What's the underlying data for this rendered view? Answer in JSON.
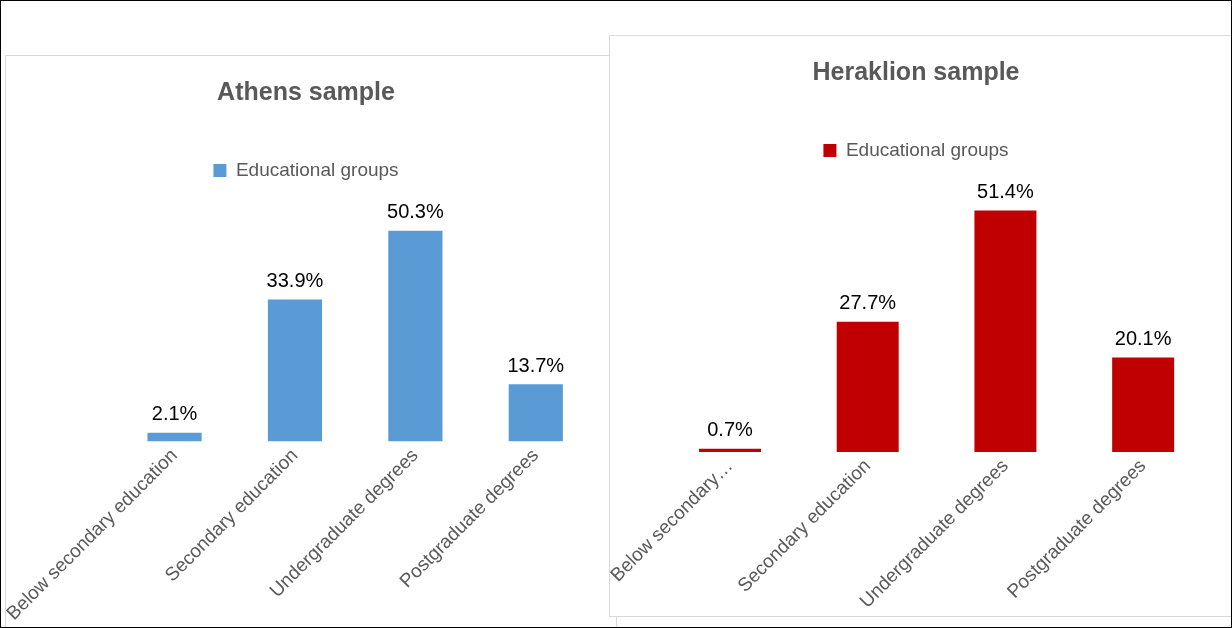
{
  "chart_data": [
    {
      "type": "bar",
      "title": "Athens sample",
      "categories": [
        "Below secondary education",
        "Secondary education",
        "Undergraduate degrees",
        "Postgraduate degrees"
      ],
      "series": [
        {
          "name": "Educational groups",
          "color": "#5b9bd5",
          "values": [
            2.1,
            33.9,
            50.3,
            13.7
          ],
          "value_labels": [
            "2.1%",
            "33.9%",
            "50.3%",
            "13.7%"
          ]
        }
      ],
      "legend": "top",
      "grid": false,
      "tick_labels": "x"
    },
    {
      "type": "bar",
      "title": "Heraklion sample",
      "categories": [
        "Below secondary…",
        "Secondary education",
        "Undergraduate degrees",
        "Postgraduate degrees"
      ],
      "series": [
        {
          "name": "Educational groups",
          "color": "#c00000",
          "values": [
            0.7,
            27.7,
            51.4,
            20.1
          ],
          "value_labels": [
            "0.7%",
            "27.7%",
            "51.4%",
            "20.1%"
          ]
        }
      ],
      "legend": "top",
      "grid": false,
      "tick_labels": "x"
    }
  ]
}
